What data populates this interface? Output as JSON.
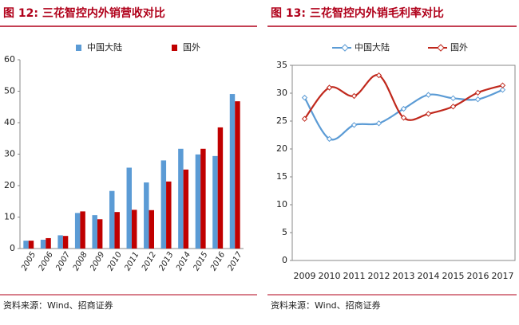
{
  "chart_data": [
    {
      "type": "bar",
      "title": "图 12: 三花智控内外销营收对比",
      "categories": [
        "2005",
        "2006",
        "2007",
        "2008",
        "2009",
        "2010",
        "2011",
        "2012",
        "2013",
        "2014",
        "2015",
        "2016",
        "2017"
      ],
      "series": [
        {
          "name": "中国大陆",
          "color": "#5b9bd5",
          "values": [
            2.5,
            2.8,
            4.2,
            11.3,
            10.6,
            18.3,
            25.7,
            21.0,
            28.0,
            31.7,
            29.9,
            29.4,
            49.1
          ]
        },
        {
          "name": "国外",
          "color": "#c00000",
          "values": [
            2.5,
            3.3,
            4.0,
            11.8,
            9.3,
            11.6,
            12.3,
            12.2,
            21.3,
            25.1,
            31.7,
            38.5,
            46.8
          ]
        }
      ],
      "ylim": [
        0,
        60
      ],
      "yticks": [
        0,
        10,
        20,
        30,
        40,
        50,
        60
      ],
      "grid": false,
      "source": "资料来源：Wind、招商证券"
    },
    {
      "type": "line",
      "title": "图 13: 三花智控内外销毛利率对比",
      "categories": [
        "2009",
        "2010",
        "2011",
        "2012",
        "2013",
        "2014",
        "2015",
        "2016",
        "2017"
      ],
      "series": [
        {
          "name": "中国大陆",
          "color": "#5b9bd5",
          "values": [
            29.2,
            21.8,
            24.3,
            24.6,
            27.2,
            29.7,
            29.1,
            28.9,
            30.6
          ]
        },
        {
          "name": "国外",
          "color": "#c0281c",
          "values": [
            25.4,
            31.0,
            29.5,
            33.2,
            25.6,
            26.3,
            27.6,
            30.1,
            31.4
          ]
        }
      ],
      "ylim": [
        0,
        35
      ],
      "yticks": [
        0,
        5,
        10,
        15,
        20,
        25,
        30,
        35
      ],
      "grid": false,
      "source": "资料来源：Wind、招商证券"
    }
  ]
}
